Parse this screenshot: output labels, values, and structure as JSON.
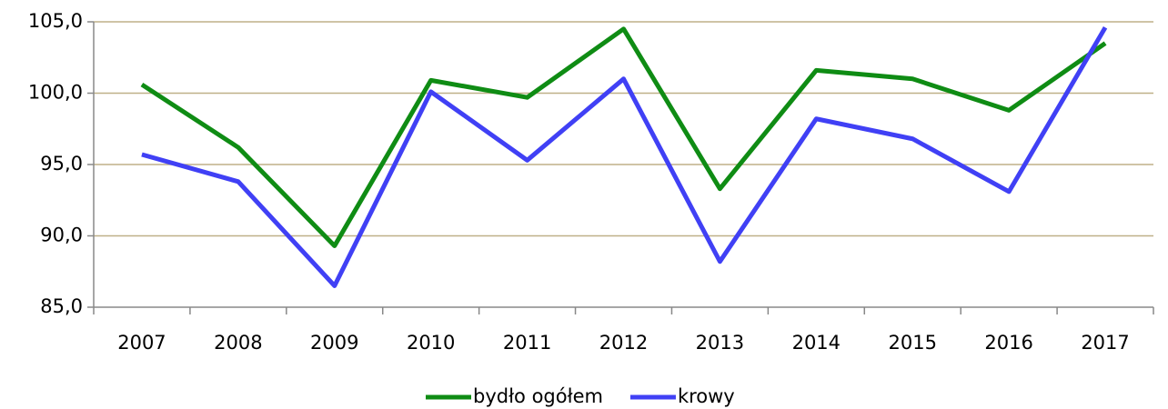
{
  "chart_data": {
    "type": "line",
    "categories": [
      "2007",
      "2008",
      "2009",
      "2010",
      "2011",
      "2012",
      "2013",
      "2014",
      "2015",
      "2016",
      "2017"
    ],
    "series": [
      {
        "name": "bydło ogółem",
        "color": "#0f8c14",
        "values": [
          100.6,
          96.2,
          89.3,
          100.9,
          99.7,
          104.5,
          93.3,
          101.6,
          101.0,
          98.8,
          103.5
        ]
      },
      {
        "name": "krowy",
        "color": "#4040f5",
        "values": [
          95.7,
          93.8,
          86.5,
          100.1,
          95.3,
          101.0,
          88.2,
          98.2,
          96.8,
          93.1,
          104.6
        ]
      }
    ],
    "ylim": [
      85,
      105
    ],
    "yticks": [
      {
        "value": 85,
        "label": "85,0"
      },
      {
        "value": 90,
        "label": "90,0"
      },
      {
        "value": 95,
        "label": "95,0"
      },
      {
        "value": 100,
        "label": "100,0"
      },
      {
        "value": 105,
        "label": "105,0"
      }
    ],
    "grid": true,
    "legend": "bottom"
  }
}
